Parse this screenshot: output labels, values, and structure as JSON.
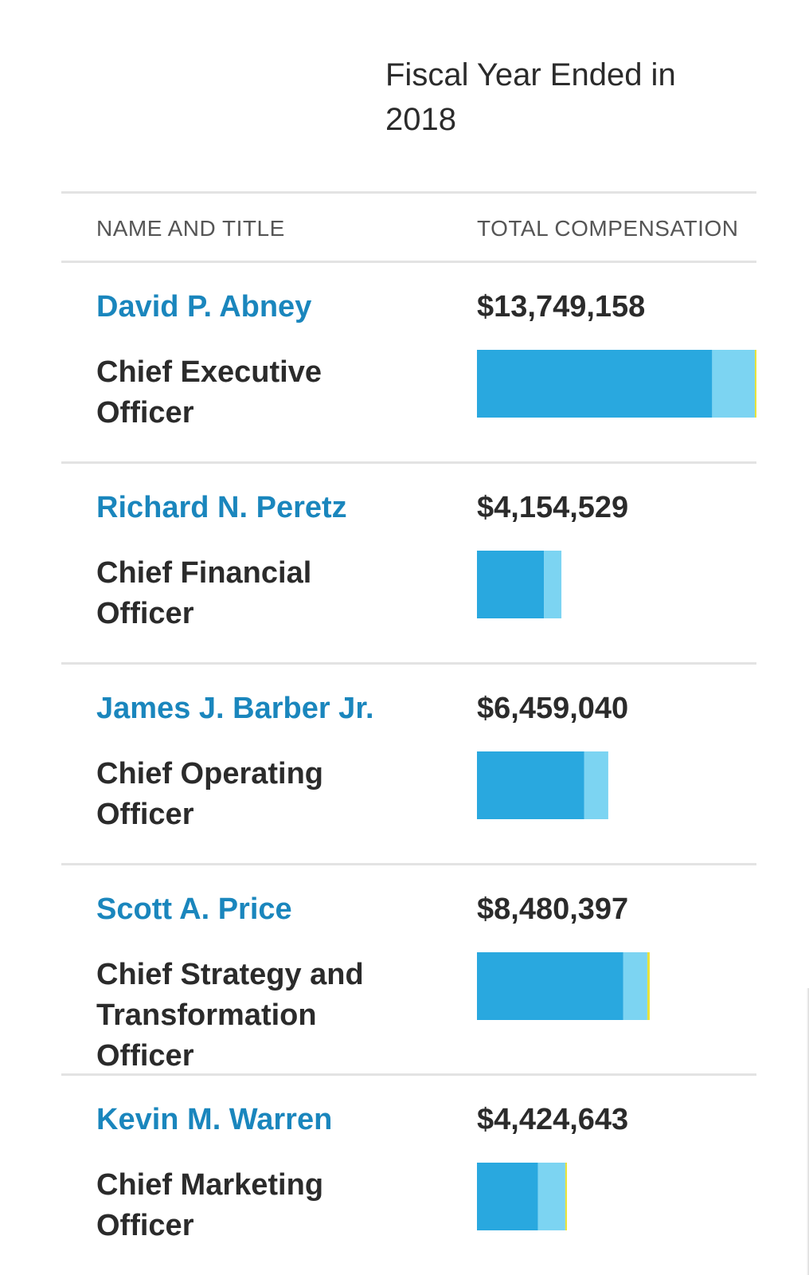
{
  "header": {
    "year_label": "Fiscal Year Ended in 2018"
  },
  "columns": {
    "name_title": "NAME AND TITLE",
    "total_compensation": "TOTAL COMPENSATION"
  },
  "colors": {
    "name_link": "#1a86bd",
    "bar_primary": "#29a8df",
    "bar_secondary": "#7cd4f2",
    "bar_tertiary": "#e8e33a",
    "divider": "#e3e3e3"
  },
  "chart_data": {
    "type": "bar",
    "orientation": "horizontal",
    "stacked": true,
    "categories": [
      "David P. Abney",
      "Richard N. Peretz",
      "James J. Barber Jr.",
      "Scott A. Price",
      "Kevin M. Warren"
    ],
    "titles": [
      "Chief Executive Officer",
      "Chief Financial Officer",
      "Chief Operating Officer",
      "Chief Strategy and Transformation Officer",
      "Chief Marketing Officer"
    ],
    "amount_labels": [
      "$13,749,158",
      "$4,154,529",
      "$6,459,040",
      "$8,480,397",
      "$4,424,643"
    ],
    "values": [
      13749158,
      4154529,
      6459040,
      8480397,
      4424643
    ],
    "segments": [
      [
        11570000,
        2100000,
        79158
      ],
      [
        3300000,
        854529,
        0
      ],
      [
        5280000,
        1179040,
        0
      ],
      [
        7200000,
        1180397,
        100000
      ],
      [
        3000000,
        1344643,
        80000
      ]
    ],
    "xlim": [
      0,
      13749158
    ]
  }
}
